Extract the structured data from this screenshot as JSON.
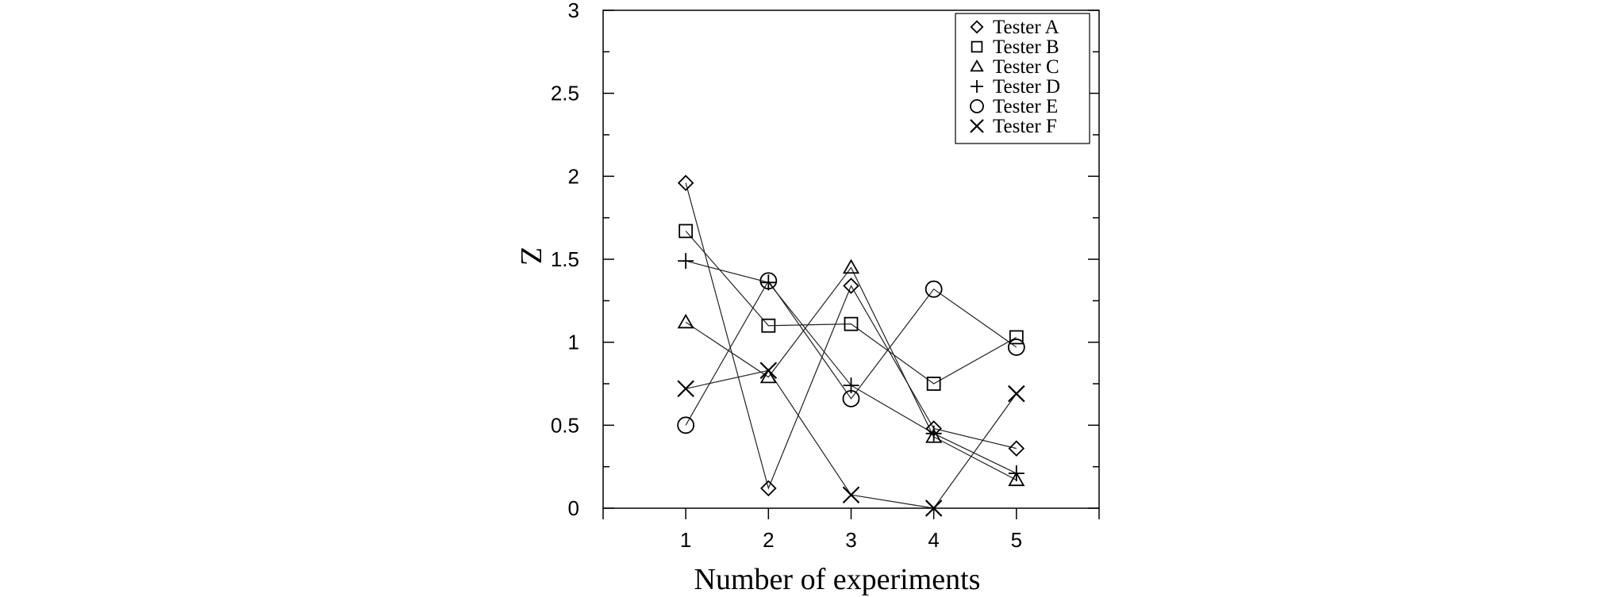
{
  "chart_data": {
    "type": "scatter",
    "title": "",
    "xlabel": "Number of experiments",
    "ylabel": "Z",
    "xlim": [
      0,
      6
    ],
    "ylim": [
      0,
      3
    ],
    "x_ticks": [
      "1",
      "2",
      "3",
      "4",
      "5"
    ],
    "y_ticks": [
      "0",
      "0.5",
      "1",
      "1.5",
      "2",
      "2.5",
      "3"
    ],
    "grid": false,
    "legend_position": "top-right",
    "x": [
      1,
      2,
      3,
      4,
      5
    ],
    "series": [
      {
        "name": "Tester A",
        "marker": "diamond",
        "values": [
          1.96,
          0.12,
          1.34,
          0.48,
          0.36
        ]
      },
      {
        "name": "Tester B",
        "marker": "square",
        "values": [
          1.67,
          1.1,
          1.11,
          0.75,
          1.03
        ]
      },
      {
        "name": "Tester C",
        "marker": "triangle",
        "values": [
          1.12,
          0.79,
          1.45,
          0.43,
          0.17
        ]
      },
      {
        "name": "Tester D",
        "marker": "plus",
        "values": [
          1.49,
          1.36,
          0.74,
          0.45,
          0.21
        ]
      },
      {
        "name": "Tester E",
        "marker": "circle",
        "values": [
          0.5,
          1.37,
          0.66,
          1.32,
          0.97
        ]
      },
      {
        "name": "Tester F",
        "marker": "cross",
        "values": [
          0.72,
          0.83,
          0.08,
          0.0,
          0.69
        ]
      }
    ]
  }
}
